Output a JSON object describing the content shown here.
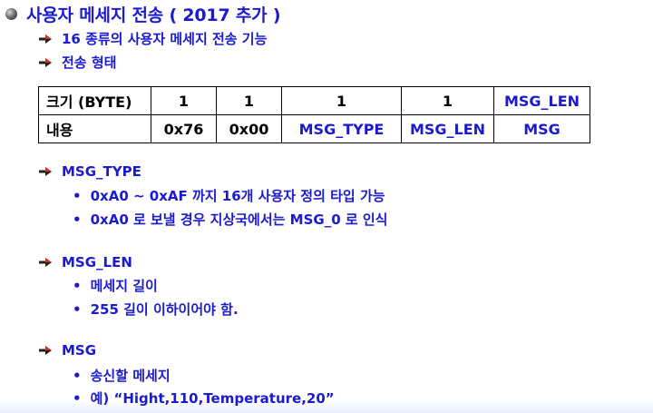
{
  "title": "사용자 메세지 전송 ( 2017 추가 )",
  "intro": [
    "16 종류의 사용자 메세지 전송 기능",
    "전송 형태"
  ],
  "table": {
    "rows": [
      [
        "크기 (BYTE)",
        "1",
        "1",
        "1",
        "1",
        "MSG_LEN"
      ],
      [
        "내용",
        "0x76",
        "0x00",
        "MSG_TYPE",
        "MSG_LEN",
        "MSG"
      ]
    ]
  },
  "sections": [
    {
      "heading": "MSG_TYPE",
      "items": [
        "0xA0 ~ 0xAF 까지 16개 사용자 정의 타입 가능",
        "0xA0 로 보낼 경우 지상국에서는 MSG_0 로 인식"
      ]
    },
    {
      "heading": "MSG_LEN",
      "items": [
        "메세지 길이",
        "255 길이 이하이어야 함."
      ]
    },
    {
      "heading": "MSG",
      "items": [
        "송신할 메세지",
        "예)  “Hight,110,Temperature,20”"
      ]
    }
  ],
  "colors": {
    "text_blue": "#1a1ad0",
    "table_border": "#000000",
    "arrow_dark": "#222222",
    "arrow_light": "#cc3322"
  },
  "icons": {
    "title_bullet": "sphere-bullet-icon",
    "sub_bullet": "arrow-bullet-icon",
    "item_bullet": "dot-bullet"
  }
}
